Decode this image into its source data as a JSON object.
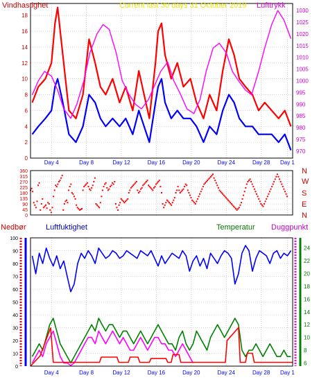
{
  "colors": {
    "frame": "#000000",
    "grid": "#b0b0b0",
    "x_tick_labels": "#0000ff",
    "wind_speed": "#ff0000",
    "wind_mean": "#0000ff",
    "pressure": "#ff00ff",
    "wind_direction": "#ff0000",
    "precipitation": "#ff0000",
    "humidity": "#0000ff",
    "temperature": "#008000",
    "dew_point": "#ff00ff",
    "title": "#ffff00"
  },
  "x_axis": {
    "ticks": [
      "Day 4",
      "Day 8",
      "Day 12",
      "Day 16",
      "Day 20",
      "Day 24",
      "Day 28",
      "Day 1"
    ],
    "tick_day_index": [
      3,
      7,
      11,
      15,
      19,
      23,
      27,
      30
    ],
    "range_days": [
      0.6,
      30.6
    ]
  },
  "chart_data": [
    {
      "type": "line",
      "title": "Current last 30 days 31 October 2019",
      "left_axis_label": "Vindhastighet",
      "right_axis_label": "Lufttrykk",
      "ylim": [
        0,
        19.5
      ],
      "y_ticks": [
        "0",
        "2",
        "4",
        "6",
        "8",
        "10",
        "12",
        "14",
        "16",
        "18"
      ],
      "y_ticks_right": [
        "970",
        "975",
        "980",
        "985",
        "990",
        "995",
        "1000",
        "1005",
        "1010",
        "1015",
        "1020",
        "1025",
        "1030"
      ],
      "ylim_right": [
        967,
        1033
      ],
      "grid": true,
      "series": [
        {
          "id": "wind_gust",
          "x": [
            0.8,
            1.5,
            2.3,
            3.0,
            3.4,
            3.7,
            4.3,
            5.0,
            5.8,
            6.6,
            7.3,
            8.0,
            8.6,
            9.2,
            10.0,
            10.8,
            11.5,
            12.3,
            13.0,
            13.6,
            14.2,
            14.9,
            15.2,
            15.6,
            16.0,
            16.7,
            17.4,
            18.1,
            18.9,
            19.6,
            20.4,
            21.1,
            21.9,
            22.6,
            23.3,
            23.9,
            24.5,
            25.2,
            26.0,
            26.7,
            27.4,
            28.2,
            29.0,
            29.7,
            30.4
          ],
          "y": [
            7,
            9,
            10,
            12,
            17,
            19,
            13,
            6,
            5,
            8,
            15,
            12,
            9,
            8,
            10,
            7,
            9,
            6,
            11,
            8,
            5,
            12,
            16,
            17,
            13,
            10,
            12,
            9,
            10,
            7,
            5,
            8,
            6,
            11,
            15,
            13,
            10,
            9,
            8,
            6,
            7,
            6,
            5,
            6,
            4
          ]
        },
        {
          "id": "wind_mean",
          "x": [
            0.8,
            1.5,
            2.3,
            3.0,
            3.4,
            3.7,
            4.3,
            5.0,
            5.8,
            6.6,
            7.3,
            8.0,
            8.6,
            9.2,
            10.0,
            10.8,
            11.5,
            12.3,
            13.0,
            13.6,
            14.2,
            14.9,
            15.2,
            15.6,
            16.0,
            16.7,
            17.4,
            18.1,
            18.9,
            19.6,
            20.4,
            21.1,
            21.9,
            22.6,
            23.3,
            23.9,
            24.5,
            25.2,
            26.0,
            26.7,
            27.4,
            28.2,
            29.0,
            29.7,
            30.4
          ],
          "y": [
            3,
            4,
            5,
            6,
            9,
            10,
            7,
            3,
            2,
            4,
            8,
            7,
            5,
            4,
            5,
            4,
            5,
            3,
            6,
            4,
            2,
            7,
            9,
            10,
            7,
            5,
            6,
            5,
            5,
            4,
            2,
            4,
            3,
            6,
            8,
            7,
            5,
            4,
            4,
            3,
            3,
            3,
            2,
            3,
            1
          ]
        },
        {
          "id": "pressure",
          "axis": "right",
          "x": [
            0.8,
            1.5,
            2.2,
            3.0,
            3.7,
            4.4,
            5.2,
            5.9,
            6.7,
            7.4,
            8.2,
            8.9,
            9.6,
            10.4,
            11.1,
            11.9,
            12.6,
            13.3,
            14.1,
            14.8,
            15.5,
            16.3,
            17.0,
            17.8,
            18.5,
            19.3,
            20.0,
            20.7,
            21.5,
            22.2,
            23.0,
            23.7,
            24.4,
            25.2,
            25.9,
            26.7,
            27.4,
            28.2,
            28.9,
            29.6,
            30.4
          ],
          "y": [
            994,
            1000,
            1004,
            1002,
            996,
            988,
            984,
            990,
            1000,
            1012,
            1020,
            1024,
            1022,
            1012,
            1000,
            994,
            990,
            988,
            992,
            998,
            1004,
            1008,
            1000,
            994,
            988,
            986,
            992,
            1004,
            1014,
            1016,
            1012,
            1004,
            1000,
            996,
            994,
            1004,
            1014,
            1024,
            1030,
            1026,
            1018
          ]
        }
      ]
    },
    {
      "type": "scatter",
      "id": "wind_direction",
      "ylim": [
        0,
        360
      ],
      "y_ticks": [
        "0",
        "45",
        "90",
        "135",
        "180",
        "225",
        "270",
        "315",
        "360"
      ],
      "right_labels": [
        "N",
        "W",
        "S",
        "E",
        "N"
      ],
      "grid": true,
      "x_start": 0.6,
      "x_step": 0.125,
      "y": [
        200,
        215,
        190,
        100,
        80,
        60,
        110,
        240,
        260,
        40,
        90,
        130,
        60,
        70,
        80,
        55,
        100,
        90,
        40,
        20,
        60,
        150,
        200,
        240,
        230,
        250,
        270,
        280,
        300,
        320,
        40,
        90,
        110,
        120,
        100,
        200,
        230,
        250,
        180,
        170,
        150,
        130,
        80,
        60,
        50,
        40,
        45,
        50,
        200,
        230,
        240,
        250,
        260,
        230,
        210,
        200,
        220,
        240,
        270,
        300,
        90,
        80,
        70,
        60,
        100,
        150,
        200,
        230,
        250,
        260,
        220,
        200,
        210,
        230,
        240,
        260,
        250,
        270,
        90,
        60,
        40,
        80,
        100,
        130,
        120,
        110,
        100,
        110,
        120,
        130,
        180,
        200,
        220,
        230,
        240,
        250,
        260,
        270,
        200,
        180,
        190,
        210,
        220,
        240,
        250,
        260,
        270,
        280,
        240,
        230,
        220,
        210,
        200,
        220,
        230,
        250,
        260,
        270,
        280,
        230,
        180,
        90,
        60,
        80,
        100,
        120,
        110,
        100,
        90,
        80,
        100,
        120,
        140,
        180,
        200,
        230,
        200,
        180,
        190,
        200,
        210,
        230,
        250,
        240,
        200,
        180,
        160,
        140,
        120,
        110,
        100,
        90,
        110,
        130,
        150,
        170,
        190,
        210,
        230,
        250,
        260,
        270,
        280,
        290,
        300,
        310,
        320,
        330,
        300,
        280,
        260,
        240,
        220,
        200,
        190,
        180,
        170,
        160,
        150,
        140,
        130,
        120,
        110,
        100,
        90,
        80,
        70,
        60,
        50,
        40,
        50,
        60,
        80,
        100,
        130,
        160,
        190,
        220,
        250,
        270,
        280,
        290,
        270,
        250,
        230,
        210,
        190,
        170,
        150,
        130,
        110,
        90,
        80,
        70,
        90,
        110,
        130,
        150,
        170,
        190,
        210,
        230,
        250,
        270,
        290,
        310,
        330,
        310,
        290,
        270,
        250,
        230,
        210,
        190,
        170,
        150
      ]
    },
    {
      "type": "line",
      "left_axis_label": "Nedbør",
      "left_axis_label_2": "Luftfuktighet",
      "right_axis_label": "Temperatur",
      "right_axis_label_2": "Duggpunkt",
      "ylim": [
        0,
        100
      ],
      "y_ticks": [
        "0",
        "10",
        "20",
        "30",
        "40",
        "50",
        "60",
        "70",
        "80",
        "90",
        "100"
      ],
      "y_ticks_right": [
        "6",
        "8",
        "10",
        "12",
        "14",
        "16",
        "18",
        "20",
        "22",
        "24"
      ],
      "ylim_right": [
        5.5,
        25.6
      ],
      "grid": true,
      "series": [
        {
          "id": "humidity",
          "x": [
            0.8,
            1.2,
            1.6,
            2.0,
            2.4,
            2.8,
            3.2,
            3.6,
            4.0,
            4.4,
            4.8,
            5.2,
            5.6,
            6.0,
            6.4,
            6.8,
            7.2,
            7.6,
            8.0,
            8.4,
            8.8,
            9.2,
            9.6,
            10.0,
            10.4,
            10.8,
            11.2,
            11.6,
            12.0,
            12.4,
            12.8,
            13.2,
            13.6,
            14.0,
            14.4,
            14.8,
            15.2,
            15.6,
            16.0,
            16.4,
            16.8,
            17.2,
            17.6,
            18.0,
            18.4,
            18.8,
            19.2,
            19.6,
            20.0,
            20.4,
            20.8,
            21.2,
            21.6,
            22.0,
            22.4,
            22.8,
            23.2,
            23.6,
            24.0,
            24.4,
            24.8,
            25.2,
            25.6,
            26.0,
            26.4,
            26.8,
            27.2,
            27.6,
            28.0,
            28.4,
            28.8,
            29.2,
            29.6,
            30.0,
            30.4
          ],
          "y": [
            86,
            72,
            88,
            80,
            92,
            84,
            78,
            86,
            76,
            82,
            70,
            58,
            64,
            80,
            88,
            84,
            90,
            86,
            80,
            92,
            88,
            84,
            86,
            90,
            88,
            84,
            86,
            90,
            88,
            86,
            84,
            90,
            88,
            86,
            90,
            84,
            78,
            86,
            80,
            84,
            88,
            86,
            84,
            90,
            86,
            74,
            82,
            86,
            78,
            84,
            76,
            88,
            84,
            80,
            86,
            90,
            88,
            84,
            64,
            72,
            88,
            94,
            90,
            74,
            84,
            90,
            88,
            86,
            80,
            88,
            90,
            84,
            88,
            86,
            90
          ]
        },
        {
          "id": "temperature",
          "axis": "right",
          "x": [
            0.8,
            1.2,
            1.6,
            2.0,
            2.4,
            2.8,
            3.2,
            3.6,
            4.0,
            4.4,
            4.8,
            5.2,
            5.6,
            6.0,
            6.4,
            6.8,
            7.2,
            7.6,
            8.0,
            8.4,
            8.8,
            9.2,
            9.6,
            10.0,
            10.4,
            10.8,
            11.2,
            11.6,
            12.0,
            12.4,
            12.8,
            13.2,
            13.6,
            14.0,
            14.4,
            14.8,
            15.2,
            15.6,
            16.0,
            16.4,
            16.8,
            17.2,
            17.6,
            18.0,
            18.4,
            18.8,
            19.2,
            19.6,
            20.0,
            20.4,
            20.8,
            21.2,
            21.6,
            22.0,
            22.4,
            22.8,
            23.2,
            23.6,
            24.0,
            24.4,
            24.8,
            25.2,
            25.6,
            26.0,
            26.4,
            26.8,
            27.2,
            27.6,
            28.0,
            28.4,
            28.8,
            29.2,
            29.6,
            30.0,
            30.4
          ],
          "y": [
            7,
            8,
            9,
            8,
            10,
            12,
            13,
            11,
            9,
            8,
            7,
            6,
            7,
            8,
            9,
            10,
            11,
            12,
            11,
            13,
            12,
            11,
            12,
            12,
            11,
            10,
            11,
            11,
            10,
            9,
            10,
            11,
            10,
            9,
            10,
            11,
            12,
            11,
            10,
            9,
            9,
            8,
            10,
            11,
            9,
            8,
            9,
            11,
            10,
            9,
            8,
            10,
            11,
            12,
            11,
            10,
            11,
            12,
            13,
            12,
            8,
            7,
            8,
            8,
            9,
            8,
            7,
            8,
            9,
            8,
            7,
            7,
            8,
            7,
            7
          ]
        },
        {
          "id": "dew_point",
          "axis": "right",
          "x": [
            0.8,
            1.2,
            1.6,
            2.0,
            2.4,
            2.8,
            3.2,
            3.6,
            4.0,
            4.4,
            4.8,
            5.2,
            5.6,
            6.0,
            6.4,
            6.8,
            7.2,
            7.6,
            8.0,
            8.4,
            8.8,
            9.2,
            9.6,
            10.0,
            10.4,
            10.8,
            11.2,
            11.6,
            12.0,
            12.4,
            12.8,
            13.2,
            13.6,
            14.0,
            14.4,
            14.8,
            15.2,
            15.6,
            16.0,
            16.4,
            16.8,
            17.2,
            17.6,
            18.0,
            18.4,
            18.8,
            19.2
          ],
          "y": [
            6,
            7,
            8,
            7,
            9,
            10,
            11,
            9,
            7,
            6,
            6,
            5.6,
            6,
            7,
            8,
            9,
            10,
            10,
            9,
            11,
            10,
            9,
            10,
            11,
            10,
            9,
            10,
            9,
            8,
            8,
            9,
            10,
            9,
            8,
            9,
            10,
            10,
            9,
            9,
            8,
            8,
            7,
            8,
            9,
            8,
            7,
            6
          ]
        },
        {
          "id": "precipitation",
          "type": "step",
          "x": [
            0.6,
            1.7,
            2.9,
            3.2,
            4.8,
            5.0,
            8.5,
            8.7,
            10.5,
            10.7,
            11.8,
            12.0,
            12.9,
            13.1,
            14.2,
            14.4,
            16.1,
            16.3,
            16.7,
            16.9,
            17.6,
            17.8,
            22.9,
            23.1,
            24.4,
            24.6,
            25.2,
            25.4,
            26.0,
            26.2,
            30.6
          ],
          "y": [
            0,
            8,
            30,
            3,
            3,
            3,
            3,
            7,
            7,
            3,
            3,
            7,
            7,
            3,
            3,
            6,
            6,
            3,
            3,
            9,
            9,
            3,
            3,
            20,
            30,
            3,
            3,
            10,
            10,
            3,
            3
          ]
        }
      ]
    }
  ]
}
